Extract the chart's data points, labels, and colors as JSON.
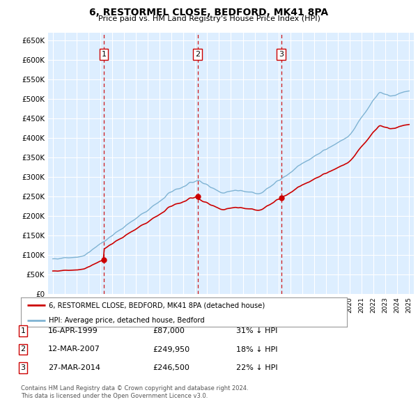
{
  "title": "6, RESTORMEL CLOSE, BEDFORD, MK41 8PA",
  "subtitle": "Price paid vs. HM Land Registry's House Price Index (HPI)",
  "ylabel_ticks": [
    "£0",
    "£50K",
    "£100K",
    "£150K",
    "£200K",
    "£250K",
    "£300K",
    "£350K",
    "£400K",
    "£450K",
    "£500K",
    "£550K",
    "£600K",
    "£650K"
  ],
  "ytick_values": [
    0,
    50000,
    100000,
    150000,
    200000,
    250000,
    300000,
    350000,
    400000,
    450000,
    500000,
    550000,
    600000,
    650000
  ],
  "hpi_color": "#7fb3d3",
  "price_color": "#cc0000",
  "background_color": "#ddeeff",
  "grid_color": "#ffffff",
  "annotation_line_color": "#cc0000",
  "sales": [
    {
      "num": 1,
      "date_str": "16-APR-1999",
      "price": 87000,
      "pct": "31%",
      "x_year": 1999.29
    },
    {
      "num": 2,
      "date_str": "12-MAR-2007",
      "price": 249950,
      "pct": "18%",
      "x_year": 2007.19
    },
    {
      "num": 3,
      "date_str": "27-MAR-2014",
      "price": 246500,
      "pct": "22%",
      "x_year": 2014.23
    }
  ],
  "legend_label_price": "6, RESTORMEL CLOSE, BEDFORD, MK41 8PA (detached house)",
  "legend_label_hpi": "HPI: Average price, detached house, Bedford",
  "footer_line1": "Contains HM Land Registry data © Crown copyright and database right 2024.",
  "footer_line2": "This data is licensed under the Open Government Licence v3.0.",
  "xlim": [
    1994.6,
    2025.4
  ],
  "ylim": [
    0,
    670000
  ],
  "year_start": 1995,
  "year_end": 2025
}
